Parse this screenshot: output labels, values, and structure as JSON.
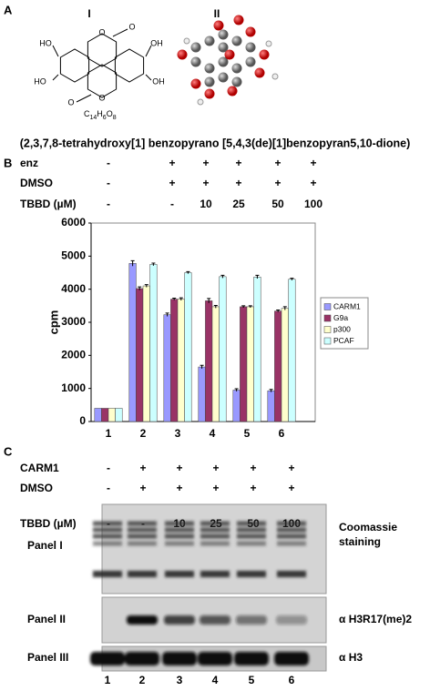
{
  "panel_a": {
    "label": "A",
    "structure_labels": [
      "I",
      "II"
    ],
    "atom_labels": [
      "HO",
      "HO",
      "OH",
      "OH",
      "O",
      "O",
      "O",
      "O"
    ],
    "formula": [
      "C",
      "14",
      "H",
      "6",
      "O",
      "8"
    ],
    "name": "(2,3,7,8-tetrahydroxy[1] benzopyrano [5,4,3(de)[1]benzopyran5,10-dione)"
  },
  "panel_b": {
    "label": "B",
    "rows": [
      {
        "label": "enz",
        "values": [
          "-",
          "+",
          "+",
          "+",
          "+",
          "+"
        ]
      },
      {
        "label": "DMSO",
        "values": [
          "-",
          "+",
          "+",
          "+",
          "+",
          "+"
        ]
      },
      {
        "label": "TBBD (µM)",
        "values": [
          "-",
          "-",
          "10",
          "25",
          "50",
          "100"
        ]
      }
    ]
  },
  "chart_data": {
    "type": "bar",
    "y_label": "cpm",
    "categories": [
      "1",
      "2",
      "3",
      "4",
      "5",
      "6"
    ],
    "series": [
      {
        "name": "CARM1",
        "color": "#9999ff",
        "values": [
          400,
          4780,
          3230,
          1650,
          950,
          930
        ],
        "errors": [
          0,
          80,
          50,
          50,
          40,
          40
        ]
      },
      {
        "name": "G9a",
        "color": "#993366",
        "values": [
          400,
          4020,
          3700,
          3650,
          3470,
          3340
        ],
        "errors": [
          0,
          50,
          30,
          70,
          30,
          30
        ]
      },
      {
        "name": "p300",
        "color": "#ffffcc",
        "values": [
          400,
          4100,
          3700,
          3470,
          3470,
          3420
        ],
        "errors": [
          0,
          40,
          40,
          40,
          30,
          50
        ]
      },
      {
        "name": "PCAF",
        "color": "#ccffff",
        "values": [
          400,
          4750,
          4500,
          4380,
          4370,
          4300
        ],
        "errors": [
          0,
          40,
          30,
          40,
          50,
          30
        ]
      }
    ],
    "ylim": [
      0,
      6000
    ],
    "yticks": [
      0,
      1000,
      2000,
      3000,
      4000,
      5000,
      6000
    ],
    "legend": "right"
  },
  "panel_c": {
    "label": "C",
    "rows": [
      {
        "label": "CARM1",
        "values": [
          "-",
          "+",
          "+",
          "+",
          "+",
          "+"
        ]
      },
      {
        "label": "DMSO",
        "values": [
          "-",
          "+",
          "+",
          "+",
          "+",
          "+"
        ]
      },
      {
        "label": "TBBD (µM)",
        "values": [
          "-",
          "-",
          "10",
          "25",
          "50",
          "100"
        ]
      }
    ],
    "blots": [
      {
        "name": "Panel I",
        "antibody": [
          "Coomassie",
          "staining"
        ]
      },
      {
        "name": "Panel II",
        "antibody": [
          "α H3R17(me)2"
        ]
      },
      {
        "name": "Panel III",
        "antibody": [
          "α H3"
        ]
      }
    ],
    "lanes": [
      "1",
      "2",
      "3",
      "4",
      "5",
      "6"
    ]
  }
}
